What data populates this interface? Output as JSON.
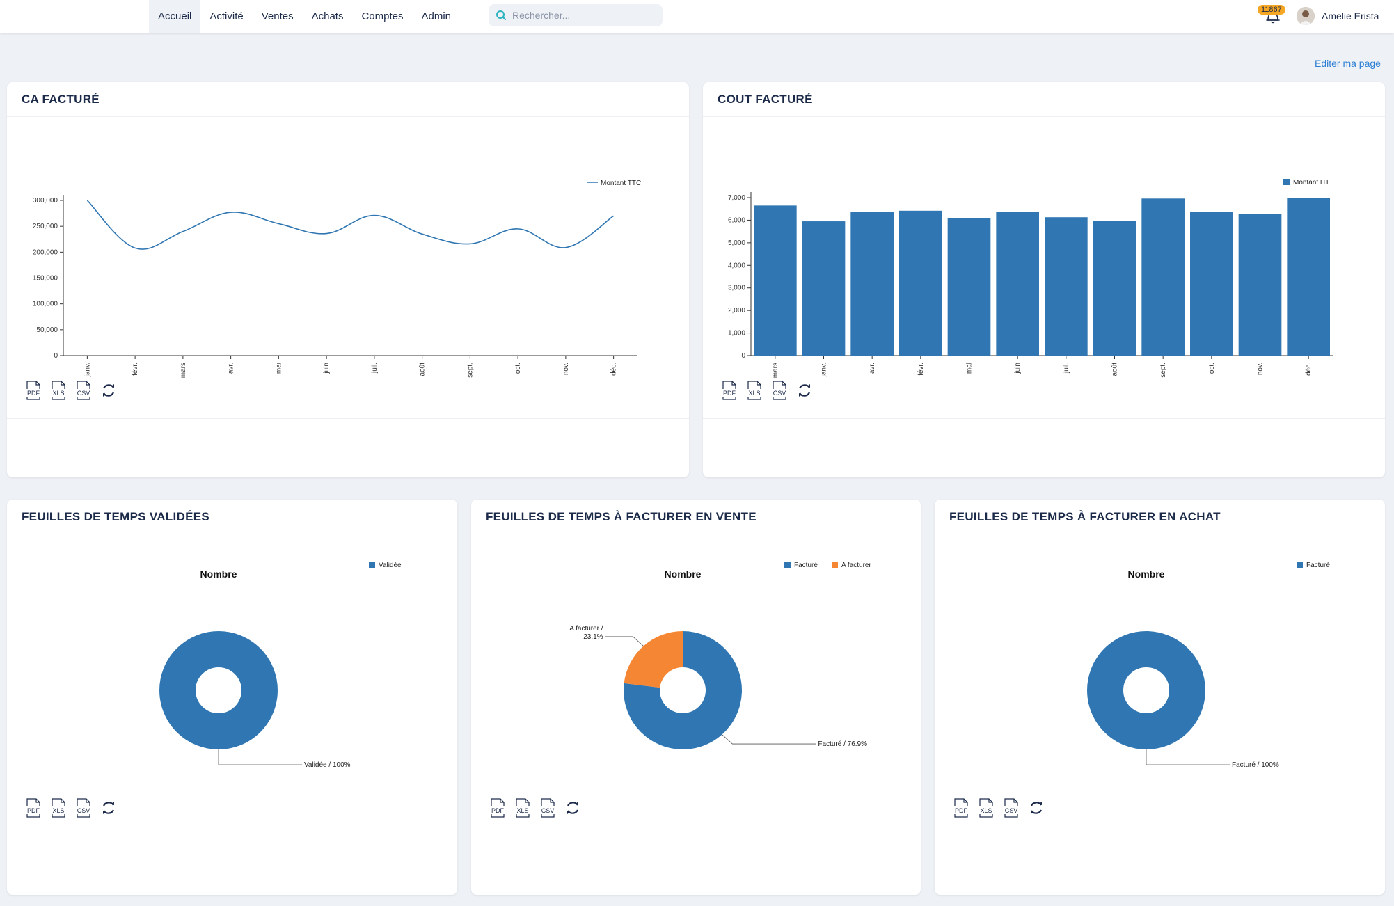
{
  "nav": {
    "items": [
      "Accueil",
      "Activité",
      "Ventes",
      "Achats",
      "Comptes",
      "Admin"
    ],
    "active": "Accueil"
  },
  "search": {
    "placeholder": "Rechercher..."
  },
  "notifications": {
    "count": "11867"
  },
  "user": {
    "name": "Amelie Erista"
  },
  "edit_page_label": "Editer ma page",
  "colors": {
    "blue": "#2f76b2",
    "orange": "#f58634",
    "navy": "#1c2a4a"
  },
  "exports": {
    "pdf": "PDF",
    "xls": "XLS",
    "csv": "CSV"
  },
  "cards": {
    "ca": {
      "title": "CA FACTURÉ"
    },
    "cout": {
      "title": "COUT FACTURÉ"
    },
    "validees": {
      "title": "FEUILLES DE TEMPS VALIDÉES"
    },
    "vente": {
      "title": "FEUILLES DE TEMPS À FACTURER EN VENTE"
    },
    "achat": {
      "title": "FEUILLES DE TEMPS À FACTURER EN ACHAT"
    }
  },
  "chart_data": [
    {
      "id": "ca",
      "type": "line",
      "categories": [
        "janv.",
        "févr.",
        "mars",
        "avr.",
        "mai",
        "juin",
        "juil.",
        "août",
        "sept.",
        "oct.",
        "nov.",
        "déc."
      ],
      "series": [
        {
          "name": "Montant TTC",
          "values": [
            300000,
            208000,
            240000,
            277000,
            255000,
            236000,
            271000,
            235000,
            216000,
            245000,
            209000,
            270000
          ]
        }
      ],
      "ylim": [
        0,
        300000
      ],
      "yticks": [
        "0",
        "50,000",
        "100,000",
        "150,000",
        "200,000",
        "250,000",
        "300,000"
      ],
      "legend": "top-right",
      "grid": false
    },
    {
      "id": "cout",
      "type": "bar",
      "categories": [
        "mars",
        "janv.",
        "avr.",
        "févr.",
        "mai",
        "juin",
        "juil.",
        "août",
        "sept.",
        "oct.",
        "nov.",
        "déc."
      ],
      "series": [
        {
          "name": "Montant HT",
          "values": [
            6650,
            5950,
            6370,
            6420,
            6080,
            6360,
            6130,
            5980,
            6960,
            6370,
            6290,
            6980
          ]
        }
      ],
      "ylim": [
        0,
        7000
      ],
      "yticks": [
        "0",
        "1,000",
        "2,000",
        "3,000",
        "4,000",
        "5,000",
        "6,000",
        "7,000"
      ],
      "legend": "top-right",
      "grid": false
    },
    {
      "id": "validees",
      "type": "pie",
      "title": "Nombre",
      "labels": [
        "Validée"
      ],
      "values": [
        100
      ],
      "slice_labels": [
        "Validée / 100%"
      ],
      "legend": "top-right"
    },
    {
      "id": "vente",
      "type": "pie",
      "title": "Nombre",
      "labels": [
        "Facturé",
        "A facturer"
      ],
      "values": [
        76.9,
        23.1
      ],
      "slice_labels": [
        "Facturé / 76.9%",
        "A facturer /|23.1%"
      ],
      "legend": "top-right"
    },
    {
      "id": "achat",
      "type": "pie",
      "title": "Nombre",
      "labels": [
        "Facturé"
      ],
      "values": [
        100
      ],
      "slice_labels": [
        "Facturé / 100%"
      ],
      "legend": "top-right"
    }
  ]
}
